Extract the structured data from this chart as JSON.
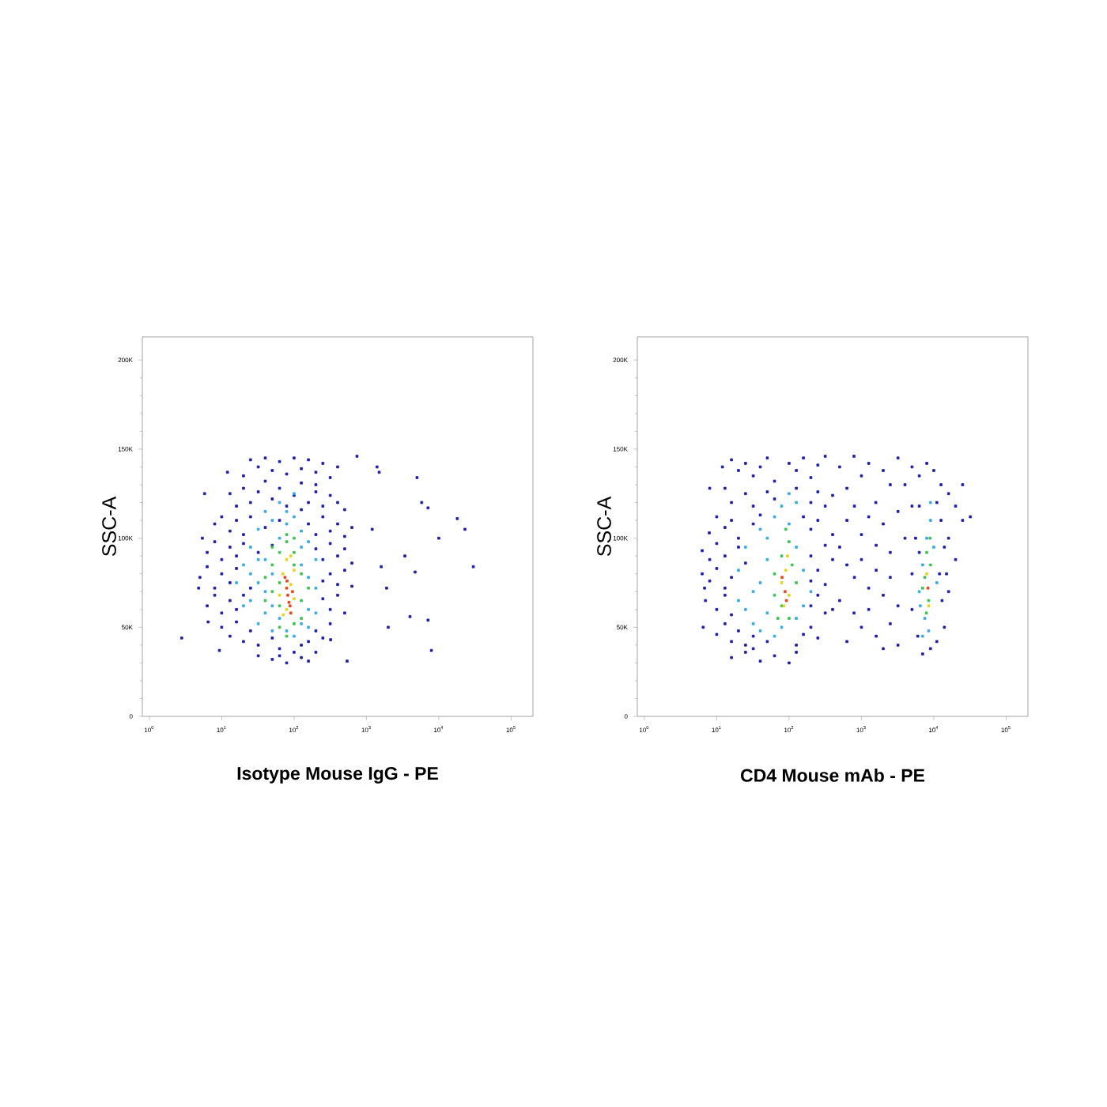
{
  "chart_data": [
    {
      "type": "scatter",
      "xlabel": "**Isotype Mouse IgG - PE**",
      "ylabel": "SSC-A",
      "log": "x",
      "marker": "square",
      "xlim": [
        0.8,
        200000
      ],
      "ylim": [
        0,
        213000
      ],
      "xticks": [
        {
          "value": 1,
          "label": "10$^{0}$"
        },
        {
          "value": 10,
          "label": "10$^{1}$"
        },
        {
          "value": 100,
          "label": "10$^{2}$"
        },
        {
          "value": 1000,
          "label": "10$^{3}$"
        },
        {
          "value": 10000,
          "label": "10$^{4}$"
        },
        {
          "value": 100000,
          "label": "10$^{5}$"
        }
      ],
      "yticks": [
        0,
        {
          "value": 50000,
          "label": "50K"
        },
        {
          "value": 100000,
          "label": "100K"
        },
        {
          "value": 150000,
          "label": "150K"
        },
        {
          "value": 200000,
          "label": "200K"
        }
      ],
      "series": [
        {
          "color": "#1c1ca8",
          "x": [
            25,
            32,
            40,
            50,
            63,
            79,
            100,
            126,
            158,
            200,
            250,
            316,
            40,
            126,
            200,
            20,
            400,
            13,
            16,
            20,
            25,
            32,
            50,
            63,
            79,
            100,
            158,
            200,
            250,
            316,
            400,
            500,
            126,
            8,
            10,
            13,
            16,
            20,
            25,
            40,
            63,
            158,
            200,
            250,
            316,
            400,
            500,
            630,
            6.3,
            8,
            10,
            13,
            16,
            20,
            32,
            50,
            200,
            250,
            316,
            400,
            500,
            630,
            5,
            6.3,
            8,
            10,
            13,
            16,
            25,
            316,
            400,
            500,
            250,
            630,
            6.3,
            8,
            10,
            13,
            16,
            20,
            250,
            316,
            400,
            500,
            10,
            13,
            16,
            20,
            25,
            32,
            50,
            63,
            100,
            158,
            200,
            250,
            316,
            126,
            32,
            50,
            79,
            126,
            158,
            200,
            63,
            2.8,
            5.8,
            12,
            5.4,
            4.8,
            6.5,
            9.3,
            1200,
            1600,
            1900,
            2000,
            1500,
            1400,
            740,
            540,
            320,
            3400,
            4700,
            4000,
            5000,
            5800,
            7100,
            10000,
            18000,
            23000,
            30000,
            7900,
            7100
          ],
          "values": [
            144000,
            140000,
            145000,
            138000,
            143000,
            136000,
            145000,
            139000,
            144000,
            137000,
            142000,
            134000,
            132000,
            131000,
            130000,
            135000,
            140000,
            125000,
            118000,
            128000,
            120000,
            126000,
            122000,
            128000,
            118000,
            124000,
            120000,
            126000,
            118000,
            124000,
            120000,
            116000,
            116000,
            108000,
            112000,
            104000,
            110000,
            102000,
            112000,
            106000,
            110000,
            108000,
            102000,
            112000,
            104000,
            108000,
            101000,
            106000,
            92000,
            98000,
            88000,
            95000,
            90000,
            97000,
            92000,
            96000,
            94000,
            88000,
            97000,
            90000,
            94000,
            86000,
            78000,
            84000,
            72000,
            80000,
            75000,
            83000,
            72000,
            80000,
            74000,
            82000,
            76000,
            73000,
            62000,
            68000,
            58000,
            65000,
            60000,
            68000,
            66000,
            60000,
            68000,
            58000,
            50000,
            45000,
            53000,
            42000,
            48000,
            40000,
            44000,
            38000,
            36000,
            42000,
            48000,
            44000,
            52000,
            40000,
            34000,
            32000,
            30000,
            33000,
            31000,
            36000,
            34000,
            44000,
            125000,
            137000,
            100000,
            72000,
            53000,
            37000,
            105000,
            84000,
            72000,
            50000,
            137000,
            140000,
            146000,
            31000,
            43000,
            90000,
            81000,
            56000,
            134000,
            120000,
            117000,
            100000,
            111000,
            105000,
            84000,
            37000,
            54000
          ]
        },
        {
          "color": "#38a8e2",
          "x": [
            20,
            25,
            32,
            40,
            50,
            63,
            79,
            100,
            126,
            158,
            200,
            25,
            32,
            40,
            50,
            63,
            79,
            100,
            126,
            158,
            200,
            40,
            32,
            50,
            126,
            158,
            25,
            16,
            20,
            63,
            100,
            126,
            200,
            40,
            50,
            158,
            79,
            32
          ],
          "values": [
            85000,
            95000,
            105000,
            115000,
            110000,
            100000,
            108000,
            112000,
            104000,
            98000,
            88000,
            65000,
            75000,
            88000,
            80000,
            55000,
            48000,
            45000,
            52000,
            60000,
            72000,
            58000,
            52000,
            48000,
            85000,
            78000,
            80000,
            75000,
            62000,
            120000,
            125000,
            95000,
            58000,
            70000,
            62000,
            50000,
            115000,
            88000
          ]
        },
        {
          "color": "#3cc050",
          "x": [
            40,
            50,
            50,
            63,
            63,
            63,
            79,
            79,
            100,
            100,
            126,
            126,
            158,
            40,
            50,
            79,
            100,
            126,
            63,
            100
          ],
          "values": [
            78000,
            70000,
            85000,
            62000,
            92000,
            50000,
            98000,
            45000,
            92000,
            52000,
            80000,
            65000,
            72000,
            65000,
            95000,
            102000,
            85000,
            55000,
            75000,
            100000
          ]
        },
        {
          "color": "#e6d21e",
          "x": [
            63,
            70,
            79,
            79,
            90,
            100,
            100,
            71,
            90
          ],
          "values": [
            68000,
            80000,
            88000,
            60000,
            74000,
            66000,
            82000,
            57000,
            90000
          ]
        },
        {
          "color": "#e8441a",
          "x": [
            79,
            85,
            90,
            75,
            95,
            82,
            88,
            80
          ],
          "values": [
            72000,
            64000,
            58000,
            78000,
            70000,
            68000,
            62000,
            76000
          ]
        }
      ]
    },
    {
      "type": "scatter",
      "xlabel": "**CD4 Mouse mAb - PE**",
      "ylabel": "SSC-A",
      "log": "x",
      "marker": "square",
      "xlim": [
        0.8,
        200000
      ],
      "ylim": [
        0,
        213000
      ],
      "xticks": [
        {
          "value": 1,
          "label": "10$^{0}$"
        },
        {
          "value": 10,
          "label": "10$^{1}$"
        },
        {
          "value": 100,
          "label": "10$^{2}$"
        },
        {
          "value": 1000,
          "label": "10$^{3}$"
        },
        {
          "value": 10000,
          "label": "10$^{4}$"
        },
        {
          "value": 100000,
          "label": "10$^{5}$"
        }
      ],
      "yticks": [
        0,
        {
          "value": 50000,
          "label": "50K"
        },
        {
          "value": 100000,
          "label": "100K"
        },
        {
          "value": 150000,
          "label": "150K"
        },
        {
          "value": 200000,
          "label": "200K"
        }
      ],
      "series": [
        {
          "color": "#1c1ca8",
          "x": [
            16,
            20,
            25,
            32,
            40,
            50,
            63,
            100,
            126,
            158,
            200,
            250,
            316,
            13,
            16,
            25,
            32,
            50,
            63,
            126,
            200,
            250,
            316,
            400,
            7.9,
            10,
            13,
            16,
            20,
            32,
            40,
            158,
            200,
            250,
            400,
            6.3,
            8,
            10,
            13,
            20,
            25,
            200,
            316,
            400,
            6.3,
            8,
            10,
            13,
            16,
            250,
            316,
            200,
            7,
            10,
            13,
            16,
            200,
            250,
            316,
            10,
            13,
            16,
            20,
            25,
            32,
            50,
            200,
            250,
            126,
            158,
            16,
            25,
            40,
            63,
            100,
            126,
            32,
            6.5,
            8,
            12,
            6.8,
            500,
            630,
            790,
            1000,
            1260,
            1580,
            2000,
            2500,
            3200,
            630,
            800,
            1000,
            1260,
            1600,
            2000,
            2500,
            3200,
            500,
            630,
            800,
            1000,
            1260,
            1600,
            2000,
            2500,
            500,
            790,
            1000,
            1600,
            2500,
            3200,
            630,
            2000,
            400,
            3200,
            4000,
            4000,
            1260,
            5000,
            6300,
            8000,
            10000,
            12600,
            16000,
            20000,
            25000,
            16000,
            20000,
            12600,
            5000,
            5600,
            6300,
            11000,
            14000,
            15000,
            13000,
            14000,
            11000,
            9000,
            7000,
            6000,
            5000,
            5000,
            6300,
            12000,
            16000,
            25000,
            32000
          ],
          "values": [
            144000,
            138000,
            142000,
            135000,
            140000,
            145000,
            132000,
            142000,
            138000,
            145000,
            134000,
            141000,
            146000,
            128000,
            120000,
            125000,
            118000,
            126000,
            122000,
            128000,
            120000,
            126000,
            118000,
            124000,
            103000,
            112000,
            106000,
            110000,
            100000,
            108000,
            113000,
            112000,
            105000,
            110000,
            102000,
            93000,
            88000,
            97000,
            90000,
            95000,
            86000,
            90000,
            96000,
            88000,
            80000,
            76000,
            83000,
            72000,
            78000,
            82000,
            74000,
            76000,
            65000,
            60000,
            68000,
            57000,
            62000,
            68000,
            58000,
            46000,
            52000,
            42000,
            48000,
            40000,
            45000,
            42000,
            50000,
            44000,
            40000,
            46000,
            33000,
            36000,
            31000,
            34000,
            30000,
            36000,
            38000,
            50000,
            128000,
            140000,
            72000,
            140000,
            128000,
            146000,
            135000,
            142000,
            120000,
            138000,
            130000,
            145000,
            110000,
            118000,
            102000,
            112000,
            96000,
            108000,
            92000,
            115000,
            95000,
            85000,
            78000,
            88000,
            72000,
            82000,
            68000,
            78000,
            65000,
            58000,
            50000,
            45000,
            52000,
            40000,
            42000,
            38000,
            60000,
            62000,
            100000,
            130000,
            60000,
            140000,
            135000,
            142000,
            138000,
            130000,
            125000,
            118000,
            110000,
            100000,
            88000,
            110000,
            118000,
            100000,
            118000,
            120000,
            95000,
            80000,
            65000,
            50000,
            42000,
            38000,
            35000,
            45000,
            60000,
            80000,
            92000,
            80000,
            70000,
            130000,
            112000
          ]
        },
        {
          "color": "#38a8e2",
          "x": [
            20,
            25,
            32,
            40,
            50,
            63,
            79,
            100,
            126,
            158,
            200,
            25,
            32,
            40,
            50,
            63,
            79,
            126,
            158,
            20,
            40,
            126,
            100,
            50,
            6300,
            7000,
            8000,
            9000,
            10000,
            7500,
            8500,
            11000,
            6500,
            9000,
            7000
          ],
          "values": [
            82000,
            95000,
            70000,
            105000,
            88000,
            112000,
            118000,
            108000,
            95000,
            82000,
            70000,
            60000,
            52000,
            48000,
            58000,
            45000,
            50000,
            55000,
            62000,
            65000,
            75000,
            120000,
            125000,
            100000,
            70000,
            85000,
            100000,
            110000,
            95000,
            55000,
            48000,
            75000,
            62000,
            120000,
            45000
          ]
        },
        {
          "color": "#3cc050",
          "x": [
            63,
            79,
            79,
            100,
            100,
            126,
            63,
            90,
            110,
            70,
            7500,
            8000,
            8500,
            9000,
            7900,
            8900,
            7000
          ],
          "values": [
            80000,
            90000,
            62000,
            98000,
            55000,
            75000,
            68000,
            105000,
            85000,
            55000,
            78000,
            92000,
            65000,
            85000,
            58000,
            100000,
            72000
          ]
        },
        {
          "color": "#e6d21e",
          "x": [
            79,
            90,
            100,
            85,
            95,
            8000,
            8500
          ],
          "values": [
            75000,
            82000,
            68000,
            62000,
            90000,
            80000,
            62000
          ]
        },
        {
          "color": "#e8441a",
          "x": [
            88,
            92,
            80,
            8300
          ],
          "values": [
            70000,
            65000,
            78000,
            72000
          ]
        }
      ]
    }
  ]
}
